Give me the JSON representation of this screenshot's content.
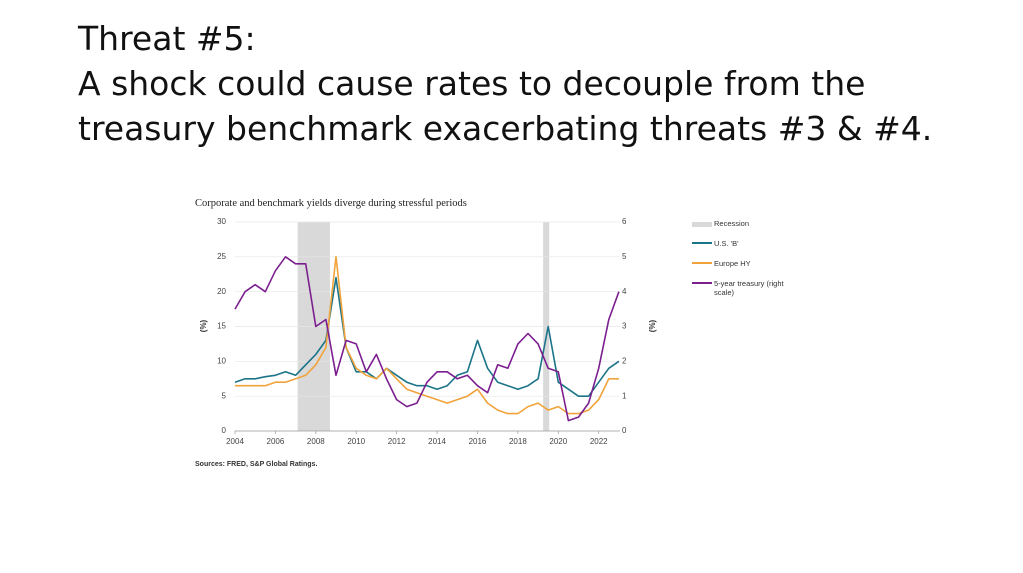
{
  "slide": {
    "title": [
      "Threat #5:",
      "A shock could cause rates to decouple from the",
      "treasury benchmark exacerbating threats #3 & #4."
    ]
  },
  "chart_data": {
    "type": "line",
    "title": "Corporate and benchmark yields diverge during stressful periods",
    "source": "Sources: FRED, S&P Global Ratings.",
    "ylabel": "(%)",
    "y2label": "(%)",
    "xlim": [
      2004,
      2023.4
    ],
    "xticks": [
      2004,
      2006,
      2008,
      2010,
      2012,
      2014,
      2016,
      2018,
      2020,
      2022
    ],
    "ylim": [
      0,
      30
    ],
    "yticks": [
      0,
      5,
      10,
      15,
      20,
      25,
      30
    ],
    "y2lim": [
      0,
      6
    ],
    "y2ticks": [
      0,
      1,
      2,
      3,
      4,
      5,
      6
    ],
    "grid": true,
    "recession": {
      "name": "Recession",
      "color": "#d9d9d9",
      "spans": [
        [
          2007.1,
          2008.7
        ],
        [
          2019.25,
          2019.55
        ]
      ]
    },
    "x": [
      2004,
      2004.5,
      2005,
      2005.5,
      2006,
      2006.5,
      2007,
      2007.5,
      2008,
      2008.5,
      2009,
      2009.5,
      2010,
      2010.5,
      2011,
      2011.5,
      2012,
      2012.5,
      2013,
      2013.5,
      2014,
      2014.5,
      2015,
      2015.5,
      2016,
      2016.5,
      2017,
      2017.5,
      2018,
      2018.5,
      2019,
      2019.5,
      2020,
      2020.5,
      2021,
      2021.5,
      2022,
      2022.5,
      2023
    ],
    "series": [
      {
        "name": "U.S. 'B'",
        "color": "#1b7488",
        "values": [
          7,
          7.5,
          7.5,
          7.8,
          8,
          8.5,
          8,
          9.5,
          11,
          13,
          22,
          12,
          8.5,
          8.5,
          7.5,
          9,
          8,
          7,
          6.5,
          6.5,
          6,
          6.5,
          8,
          8.5,
          13,
          9,
          7,
          6.5,
          6,
          6.5,
          7.5,
          15,
          7,
          6,
          5,
          5,
          7,
          9,
          10
        ]
      },
      {
        "name": "Europe HY",
        "color": "#f0a33a",
        "values": [
          6.5,
          6.5,
          6.5,
          6.5,
          7,
          7,
          7.5,
          8,
          9.5,
          12,
          25,
          12,
          9,
          8,
          7.5,
          9,
          7.5,
          6,
          5.5,
          5,
          4.5,
          4,
          4.5,
          5,
          6,
          4,
          3,
          2.5,
          2.5,
          3.5,
          4,
          3,
          3.5,
          2.5,
          2.5,
          3,
          4.5,
          7.5,
          7.5
        ]
      },
      {
        "name": "5-year treasury (right scale)",
        "color": "#7b1f8f",
        "axis": "y2",
        "values": [
          3.5,
          4.0,
          4.2,
          4.0,
          4.6,
          5.0,
          4.8,
          4.8,
          3.0,
          3.2,
          1.6,
          2.6,
          2.5,
          1.7,
          2.2,
          1.5,
          0.9,
          0.7,
          0.8,
          1.4,
          1.7,
          1.7,
          1.5,
          1.6,
          1.3,
          1.1,
          1.9,
          1.8,
          2.5,
          2.8,
          2.5,
          1.8,
          1.7,
          0.3,
          0.4,
          0.8,
          1.8,
          3.2,
          4.0
        ]
      }
    ]
  }
}
